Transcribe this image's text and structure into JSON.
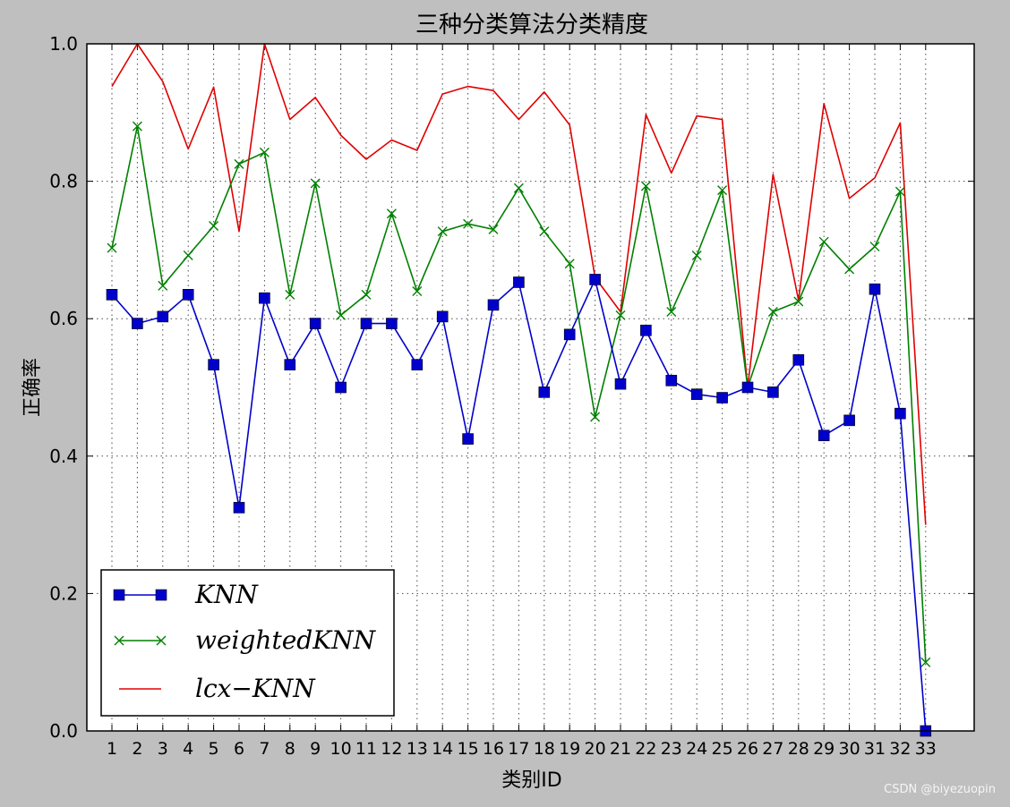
{
  "chart_data": {
    "type": "line",
    "title": "三种分类算法分类精度",
    "xlabel": "类别ID",
    "ylabel": "正确率",
    "categories": [
      "1",
      "2",
      "3",
      "4",
      "5",
      "6",
      "7",
      "8",
      "9",
      "10",
      "11",
      "12",
      "13",
      "14",
      "15",
      "16",
      "17",
      "18",
      "19",
      "20",
      "21",
      "22",
      "23",
      "24",
      "25",
      "26",
      "27",
      "28",
      "29",
      "30",
      "31",
      "32",
      "33"
    ],
    "ylim": [
      0.0,
      1.0
    ],
    "yticks": [
      "0.0",
      "0.2",
      "0.4",
      "0.6",
      "0.8",
      "1.0"
    ],
    "grid": true,
    "legend_position": "lower-left",
    "series": [
      {
        "name": "KNN",
        "color": "#0000cc",
        "marker": "square",
        "values": [
          0.635,
          0.593,
          0.603,
          0.635,
          0.533,
          0.325,
          0.63,
          0.533,
          0.593,
          0.5,
          0.593,
          0.593,
          0.533,
          0.603,
          0.425,
          0.62,
          0.653,
          0.493,
          0.577,
          0.657,
          0.505,
          0.583,
          0.51,
          0.49,
          0.485,
          0.5,
          0.493,
          0.54,
          0.43,
          0.452,
          0.643,
          0.462,
          0.0
        ]
      },
      {
        "name": "weightedKNN",
        "color": "#008000",
        "marker": "x",
        "values": [
          0.703,
          0.88,
          0.648,
          0.692,
          0.735,
          0.825,
          0.842,
          0.635,
          0.797,
          0.605,
          0.635,
          0.753,
          0.64,
          0.727,
          0.738,
          0.73,
          0.79,
          0.727,
          0.68,
          0.457,
          0.605,
          0.793,
          0.61,
          0.692,
          0.787,
          0.5,
          0.61,
          0.625,
          0.712,
          0.672,
          0.705,
          0.785,
          0.1
        ]
      },
      {
        "name": "lcx−KNN",
        "color": "#e00000",
        "marker": "none",
        "values": [
          0.938,
          1.0,
          0.945,
          0.847,
          0.937,
          0.727,
          1.0,
          0.89,
          0.922,
          0.867,
          0.832,
          0.86,
          0.845,
          0.927,
          0.938,
          0.932,
          0.89,
          0.93,
          0.882,
          0.66,
          0.61,
          0.897,
          0.812,
          0.895,
          0.89,
          0.5,
          0.81,
          0.627,
          0.913,
          0.775,
          0.805,
          0.885,
          0.3
        ]
      }
    ]
  },
  "watermark": "CSDN @biyezuopin"
}
